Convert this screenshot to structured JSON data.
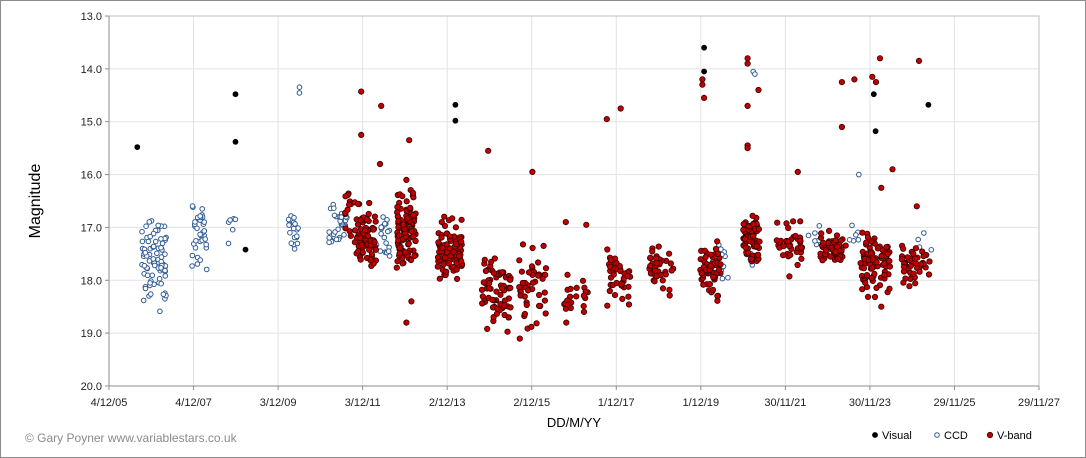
{
  "chart_data": {
    "type": "scatter",
    "xlabel": "DD/M/YY",
    "ylabel": "Magnitude",
    "credit": "© Gary Poyner www.variablestars.co.uk",
    "x_axis": {
      "min": "2005-12-04",
      "max": "2027-11-29",
      "ticks": [
        "2005-12-04",
        "2007-12-04",
        "2009-12-03",
        "2011-12-03",
        "2013-12-02",
        "2015-12-02",
        "2017-12-01",
        "2019-12-01",
        "2021-11-30",
        "2023-11-30",
        "2025-11-29",
        "2027-11-29"
      ],
      "tick_labels": [
        "4/12/05",
        "4/12/07",
        "3/12/09",
        "3/12/11",
        "2/12/13",
        "2/12/15",
        "1/12/17",
        "1/12/19",
        "30/11/21",
        "30/11/23",
        "29/11/25",
        "29/11/27"
      ]
    },
    "y_axis": {
      "min": 13.0,
      "max": 20.0,
      "inverted": true,
      "ticks": [
        13,
        14,
        15,
        16,
        17,
        18,
        19,
        20
      ],
      "tick_labels": [
        "13.0",
        "14.0",
        "15.0",
        "16.0",
        "17.0",
        "18.0",
        "19.0",
        "20.0"
      ]
    },
    "grid": true,
    "legend_position": "bottom-right",
    "series": [
      {
        "name": "Visual",
        "marker": "filled-circle",
        "color": "#000000",
        "points": [
          {
            "x": "2006-08-05",
            "y": 15.48
          },
          {
            "x": "2008-11-30",
            "y": 14.48
          },
          {
            "x": "2008-11-30",
            "y": 15.38
          },
          {
            "x": "2009-02-25",
            "y": 17.42
          },
          {
            "x": "2014-02-11",
            "y": 14.68
          },
          {
            "x": "2014-02-11",
            "y": 14.98
          },
          {
            "x": "2019-12-29",
            "y": 13.6
          },
          {
            "x": "2019-12-29",
            "y": 14.05
          },
          {
            "x": "2024-01-03",
            "y": 14.48
          },
          {
            "x": "2024-01-18",
            "y": 15.18
          },
          {
            "x": "2025-04-18",
            "y": 14.68
          }
        ]
      },
      {
        "name": "CCD",
        "marker": "open-circle",
        "color": "#2e5b96",
        "clusters": [
          {
            "start": "2006-09-15",
            "end": "2007-04-12",
            "ymin": 16.6,
            "ymax": 18.7,
            "count": 85
          },
          {
            "start": "2007-11-21",
            "end": "2008-03-27",
            "ymin": 16.3,
            "ymax": 18.05,
            "count": 35
          },
          {
            "start": "2008-09-23",
            "end": "2008-12-15",
            "ymin": 16.7,
            "ymax": 17.4,
            "count": 6
          },
          {
            "start": "2010-03-02",
            "end": "2010-05-27",
            "ymin": 16.4,
            "ymax": 17.7,
            "count": 18
          },
          {
            "start": "2010-05-27",
            "end": "2010-06-15",
            "ymin": 14.15,
            "ymax": 14.7,
            "count": 2
          },
          {
            "start": "2011-02-15",
            "end": "2011-07-23",
            "ymin": 16.3,
            "ymax": 17.5,
            "count": 35
          },
          {
            "start": "2012-03-27",
            "end": "2012-07-23",
            "ymin": 16.4,
            "ymax": 17.8,
            "count": 20
          },
          {
            "start": "2020-03-12",
            "end": "2020-08-11",
            "ymin": 16.9,
            "ymax": 18.4,
            "count": 14
          },
          {
            "start": "2021-01-26",
            "end": "2021-03-12",
            "ymin": 17.4,
            "ymax": 17.9,
            "count": 5
          },
          {
            "start": "2022-05-27",
            "end": "2022-09-26",
            "ymin": 16.9,
            "ymax": 17.4,
            "count": 6
          },
          {
            "start": "2023-06-02",
            "end": "2023-08-26",
            "ymin": 16.9,
            "ymax": 17.4,
            "count": 6
          },
          {
            "start": "2025-01-01",
            "end": "2025-05-15",
            "ymin": 17.0,
            "ymax": 17.6,
            "count": 4
          }
        ],
        "points": [
          {
            "x": "2021-02-25",
            "y": 14.05
          },
          {
            "x": "2021-03-12",
            "y": 14.1
          },
          {
            "x": "2023-08-26",
            "y": 16.0
          }
        ]
      },
      {
        "name": "V-band",
        "marker": "filled-circle-outlined",
        "color": "#c00000",
        "clusters": [
          {
            "start": "2011-06-26",
            "end": "2011-09-05",
            "ymin": 16.1,
            "ymax": 17.4,
            "count": 12
          },
          {
            "start": "2011-09-26",
            "end": "2012-03-27",
            "ymin": 16.4,
            "ymax": 17.9,
            "count": 80
          },
          {
            "start": "2012-09-23",
            "end": "2013-03-07",
            "ymin": 16.1,
            "ymax": 18.1,
            "count": 110
          },
          {
            "start": "2013-09-10",
            "end": "2014-04-11",
            "ymin": 16.7,
            "ymax": 18.2,
            "count": 95
          },
          {
            "start": "2014-09-24",
            "end": "2015-06-02",
            "ymin": 17.2,
            "ymax": 19.15,
            "count": 70
          },
          {
            "start": "2015-08-11",
            "end": "2016-04-06",
            "ymin": 17.0,
            "ymax": 19.2,
            "count": 45
          },
          {
            "start": "2016-09-05",
            "end": "2017-04-12",
            "ymin": 17.7,
            "ymax": 18.9,
            "count": 22
          },
          {
            "start": "2017-09-05",
            "end": "2018-04-02",
            "ymin": 17.3,
            "ymax": 18.7,
            "count": 40
          },
          {
            "start": "2018-09-05",
            "end": "2019-04-12",
            "ymin": 17.1,
            "ymax": 18.4,
            "count": 40
          },
          {
            "start": "2019-11-21",
            "end": "2020-05-27",
            "ymin": 17.1,
            "ymax": 18.5,
            "count": 60
          },
          {
            "start": "2020-12-02",
            "end": "2021-04-22",
            "ymin": 16.6,
            "ymax": 17.9,
            "count": 75
          },
          {
            "start": "2021-09-15",
            "end": "2022-05-05",
            "ymin": 16.7,
            "ymax": 18.0,
            "count": 38
          },
          {
            "start": "2022-09-23",
            "end": "2023-05-05",
            "ymin": 17.0,
            "ymax": 17.8,
            "count": 55
          },
          {
            "start": "2023-09-10",
            "end": "2024-05-27",
            "ymin": 16.9,
            "ymax": 18.5,
            "count": 90
          },
          {
            "start": "2024-08-21",
            "end": "2025-04-28",
            "ymin": 17.2,
            "ymax": 18.2,
            "count": 45
          }
        ],
        "points": [
          {
            "x": "2011-11-21",
            "y": 14.43
          },
          {
            "x": "2011-11-21",
            "y": 15.25
          },
          {
            "x": "2012-05-11",
            "y": 14.7
          },
          {
            "x": "2012-05-01",
            "y": 15.8
          },
          {
            "x": "2013-01-08",
            "y": 15.35
          },
          {
            "x": "2012-12-15",
            "y": 16.1
          },
          {
            "x": "2012-12-15",
            "y": 18.8
          },
          {
            "x": "2013-01-27",
            "y": 18.4
          },
          {
            "x": "2014-11-21",
            "y": 15.55
          },
          {
            "x": "2015-12-08",
            "y": 15.95
          },
          {
            "x": "2016-09-21",
            "y": 16.9
          },
          {
            "x": "2017-03-17",
            "y": 16.95
          },
          {
            "x": "2017-09-10",
            "y": 14.95
          },
          {
            "x": "2018-01-08",
            "y": 14.75
          },
          {
            "x": "2019-12-15",
            "y": 14.2
          },
          {
            "x": "2019-12-15",
            "y": 14.3
          },
          {
            "x": "2019-12-29",
            "y": 14.55
          },
          {
            "x": "2021-01-08",
            "y": 13.8
          },
          {
            "x": "2021-01-08",
            "y": 13.9
          },
          {
            "x": "2021-01-08",
            "y": 14.7
          },
          {
            "x": "2021-01-08",
            "y": 15.45
          },
          {
            "x": "2021-01-08",
            "y": 15.5
          },
          {
            "x": "2021-04-12",
            "y": 14.4
          },
          {
            "x": "2022-03-17",
            "y": 15.95
          },
          {
            "x": "2023-04-02",
            "y": 14.25
          },
          {
            "x": "2023-04-02",
            "y": 15.1
          },
          {
            "x": "2023-07-19",
            "y": 14.2
          },
          {
            "x": "2023-12-21",
            "y": 14.15
          },
          {
            "x": "2024-02-25",
            "y": 13.8
          },
          {
            "x": "2024-01-22",
            "y": 14.25
          },
          {
            "x": "2024-03-07",
            "y": 16.25
          },
          {
            "x": "2024-06-12",
            "y": 15.9
          },
          {
            "x": "2024-03-07",
            "y": 18.5
          },
          {
            "x": "2025-01-27",
            "y": 13.85
          },
          {
            "x": "2025-01-08",
            "y": 16.6
          }
        ]
      }
    ]
  }
}
